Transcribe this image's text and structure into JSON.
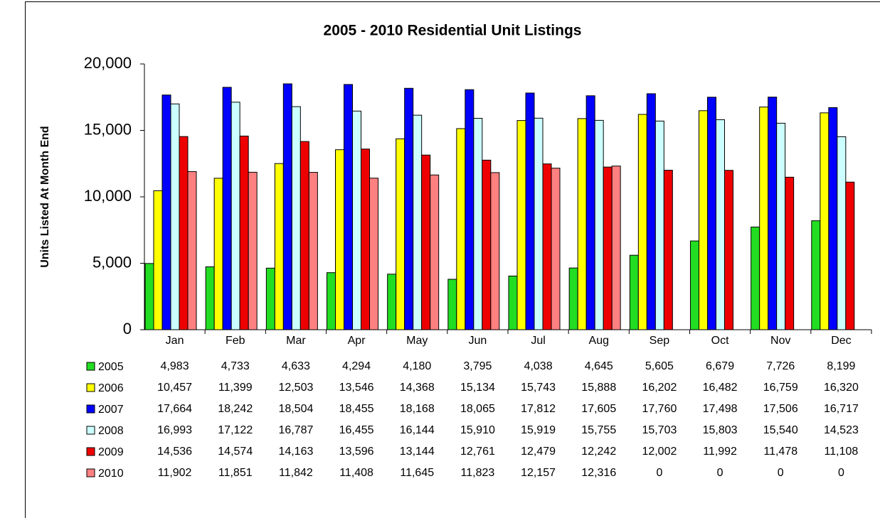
{
  "chart_data": {
    "type": "bar",
    "title": "2005 - 2010 Residential Unit Listings",
    "y_label": "Units Listed At Month End",
    "categories": [
      "Jan",
      "Feb",
      "Mar",
      "Apr",
      "May",
      "Jun",
      "Jul",
      "Aug",
      "Sep",
      "Oct",
      "Nov",
      "Dec"
    ],
    "ylim": [
      0,
      20000
    ],
    "yticks": [
      0,
      {
        "value": 5000,
        "label": "5,000"
      },
      {
        "value": 10000,
        "label": "10,000"
      },
      {
        "value": 15000,
        "label": "15,000"
      },
      {
        "value": 20000,
        "label": "20,000"
      }
    ],
    "grid": false,
    "series": [
      {
        "name": "2005",
        "color": "#22dd22",
        "values": [
          4983,
          4733,
          4633,
          4294,
          4180,
          3795,
          4038,
          4645,
          5605,
          6679,
          7726,
          8199
        ],
        "value_labels": [
          "4,983",
          "4,733",
          "4,633",
          "4,294",
          "4,180",
          "3,795",
          "4,038",
          "4,645",
          "5,605",
          "6,679",
          "7,726",
          "8,199"
        ]
      },
      {
        "name": "2006",
        "color": "#ffff00",
        "values": [
          10457,
          11399,
          12503,
          13546,
          14368,
          15134,
          15743,
          15888,
          16202,
          16482,
          16759,
          16320
        ],
        "value_labels": [
          "10,457",
          "11,399",
          "12,503",
          "13,546",
          "14,368",
          "15,134",
          "15,743",
          "15,888",
          "16,202",
          "16,482",
          "16,759",
          "16,320"
        ]
      },
      {
        "name": "2007",
        "color": "#0000ff",
        "values": [
          17664,
          18242,
          18504,
          18455,
          18168,
          18065,
          17812,
          17605,
          17760,
          17498,
          17506,
          16717
        ],
        "value_labels": [
          "17,664",
          "18,242",
          "18,504",
          "18,455",
          "18,168",
          "18,065",
          "17,812",
          "17,605",
          "17,760",
          "17,498",
          "17,506",
          "16,717"
        ]
      },
      {
        "name": "2008",
        "color": "#ccffff",
        "values": [
          16993,
          17122,
          16787,
          16455,
          16144,
          15910,
          15919,
          15755,
          15703,
          15803,
          15540,
          14523
        ],
        "value_labels": [
          "16,993",
          "17,122",
          "16,787",
          "16,455",
          "16,144",
          "15,910",
          "15,919",
          "15,755",
          "15,703",
          "15,803",
          "15,540",
          "14,523"
        ]
      },
      {
        "name": "2009",
        "color": "#ee0000",
        "values": [
          14536,
          14574,
          14163,
          13596,
          13144,
          12761,
          12479,
          12242,
          12002,
          11992,
          11478,
          11108
        ],
        "value_labels": [
          "14,536",
          "14,574",
          "14,163",
          "13,596",
          "13,144",
          "12,761",
          "12,479",
          "12,242",
          "12,002",
          "11,992",
          "11,478",
          "11,108"
        ]
      },
      {
        "name": "2010",
        "color": "#ff8080",
        "values": [
          11902,
          11851,
          11842,
          11408,
          11645,
          11823,
          12157,
          12316,
          0,
          0,
          0,
          0
        ],
        "value_labels": [
          "11,902",
          "11,851",
          "11,842",
          "11,408",
          "11,645",
          "11,823",
          "12,157",
          "12,316",
          "0",
          "0",
          "0",
          "0"
        ]
      }
    ]
  }
}
